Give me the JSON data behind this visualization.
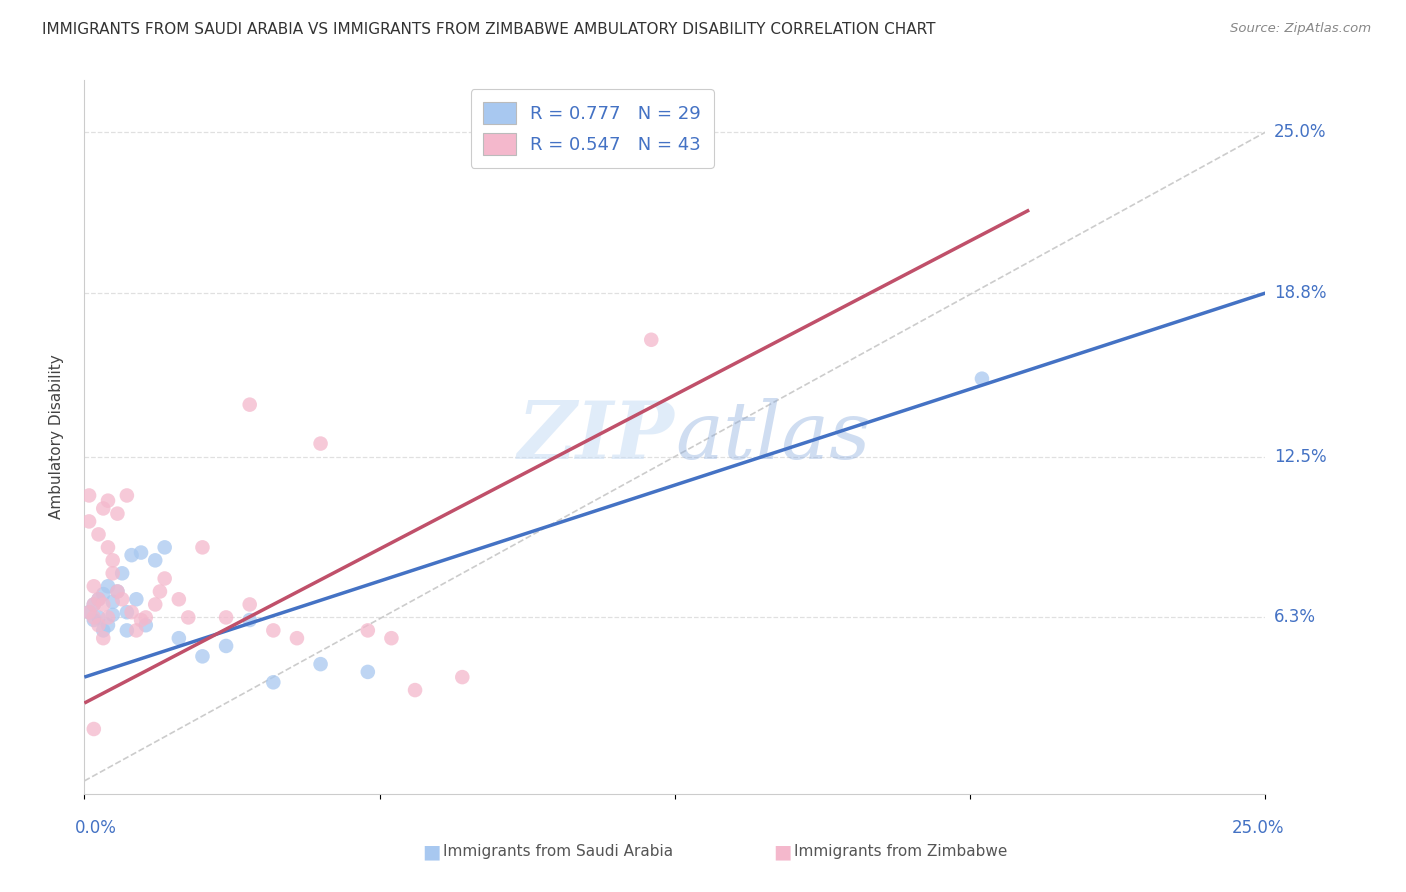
{
  "title": "IMMIGRANTS FROM SAUDI ARABIA VS IMMIGRANTS FROM ZIMBABWE AMBULATORY DISABILITY CORRELATION CHART",
  "source": "Source: ZipAtlas.com",
  "ylabel": "Ambulatory Disability",
  "saudi_color": "#a8c8f0",
  "saudi_color_line": "#4472c4",
  "zimbabwe_color": "#f4b8cc",
  "zimbabwe_color_line": "#c0506a",
  "saudi_R": 0.777,
  "saudi_N": 29,
  "zimbabwe_R": 0.547,
  "zimbabwe_N": 43,
  "xlim": [
    0.0,
    0.25
  ],
  "ylim": [
    -0.005,
    0.27
  ],
  "ytick_vals": [
    0.063,
    0.125,
    0.188,
    0.25
  ],
  "ytick_labels": [
    "6.3%",
    "12.5%",
    "18.8%",
    "25.0%"
  ],
  "blue_line_x": [
    0.0,
    0.25
  ],
  "blue_line_y": [
    0.04,
    0.188
  ],
  "pink_line_x": [
    0.0,
    0.2
  ],
  "pink_line_y": [
    0.03,
    0.22
  ],
  "saudi_x": [
    0.001,
    0.002,
    0.002,
    0.003,
    0.003,
    0.004,
    0.004,
    0.005,
    0.005,
    0.006,
    0.006,
    0.007,
    0.008,
    0.009,
    0.009,
    0.01,
    0.011,
    0.012,
    0.013,
    0.015,
    0.017,
    0.02,
    0.025,
    0.03,
    0.035,
    0.05,
    0.06,
    0.19,
    0.04
  ],
  "saudi_y": [
    0.065,
    0.062,
    0.068,
    0.063,
    0.07,
    0.072,
    0.058,
    0.06,
    0.075,
    0.064,
    0.069,
    0.073,
    0.08,
    0.058,
    0.065,
    0.087,
    0.07,
    0.088,
    0.06,
    0.085,
    0.09,
    0.055,
    0.048,
    0.052,
    0.062,
    0.045,
    0.042,
    0.155,
    0.038
  ],
  "zimbabwe_x": [
    0.001,
    0.001,
    0.001,
    0.002,
    0.002,
    0.002,
    0.003,
    0.003,
    0.003,
    0.004,
    0.004,
    0.004,
    0.005,
    0.005,
    0.005,
    0.006,
    0.006,
    0.007,
    0.007,
    0.008,
    0.009,
    0.01,
    0.011,
    0.012,
    0.013,
    0.015,
    0.016,
    0.017,
    0.02,
    0.022,
    0.025,
    0.03,
    0.035,
    0.035,
    0.04,
    0.045,
    0.05,
    0.06,
    0.065,
    0.07,
    0.08,
    0.12,
    0.002
  ],
  "zimbabwe_y": [
    0.065,
    0.1,
    0.11,
    0.063,
    0.068,
    0.075,
    0.06,
    0.07,
    0.095,
    0.055,
    0.068,
    0.105,
    0.063,
    0.09,
    0.108,
    0.08,
    0.085,
    0.073,
    0.103,
    0.07,
    0.11,
    0.065,
    0.058,
    0.062,
    0.063,
    0.068,
    0.073,
    0.078,
    0.07,
    0.063,
    0.09,
    0.063,
    0.068,
    0.145,
    0.058,
    0.055,
    0.13,
    0.058,
    0.055,
    0.035,
    0.04,
    0.17,
    0.02
  ],
  "background_color": "#ffffff",
  "grid_color": "#e0e0e0"
}
